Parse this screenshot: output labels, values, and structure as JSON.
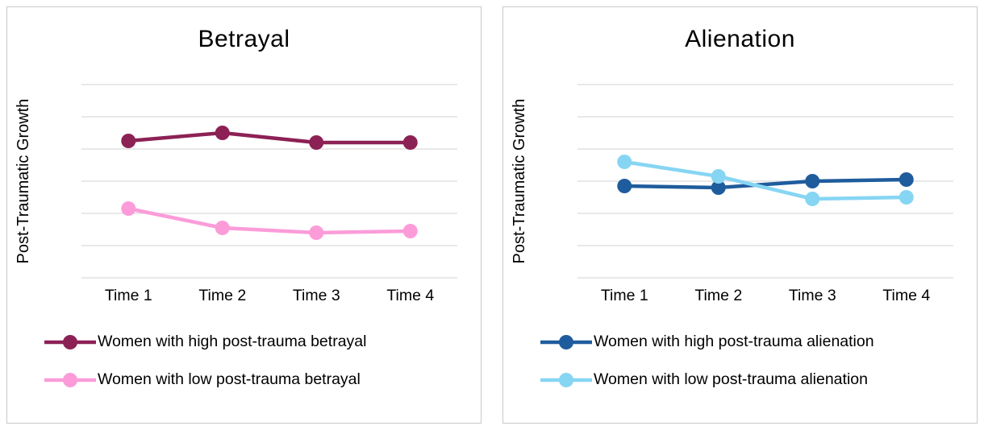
{
  "style": {
    "gridline_color": "#d9d9d9",
    "panel_border_color": "#c9c9c9",
    "text_color": "#000000",
    "background": "#ffffff"
  },
  "chart_data": [
    {
      "type": "line",
      "title": "Betrayal",
      "xlabel": "",
      "ylabel": "Post-Traumatic Growth",
      "categories": [
        "Time 1",
        "Time 2",
        "Time 3",
        "Time 4"
      ],
      "ylim": [
        0,
        6
      ],
      "gridline_step": 1,
      "grid": true,
      "legend_position": "bottom",
      "series": [
        {
          "name": "Women with high post-trauma betrayal",
          "color": "#8c2155",
          "values": [
            4.25,
            4.5,
            4.2,
            4.2
          ]
        },
        {
          "name": "Women with low post-trauma betrayal",
          "color": "#fb9cd9",
          "values": [
            2.15,
            1.55,
            1.4,
            1.45
          ]
        }
      ]
    },
    {
      "type": "line",
      "title": "Alienation",
      "xlabel": "",
      "ylabel": "Post-Traumatic Growth",
      "categories": [
        "Time 1",
        "Time 2",
        "Time 3",
        "Time 4"
      ],
      "ylim": [
        0,
        6
      ],
      "gridline_step": 1,
      "grid": true,
      "legend_position": "bottom",
      "series": [
        {
          "name": "Women with high post-trauma alienation",
          "color": "#1f5c9d",
          "values": [
            2.85,
            2.8,
            3.0,
            3.05
          ]
        },
        {
          "name": "Women with low post-trauma alienation",
          "color": "#86d5f3",
          "values": [
            3.6,
            3.15,
            2.45,
            2.5
          ]
        }
      ]
    }
  ]
}
